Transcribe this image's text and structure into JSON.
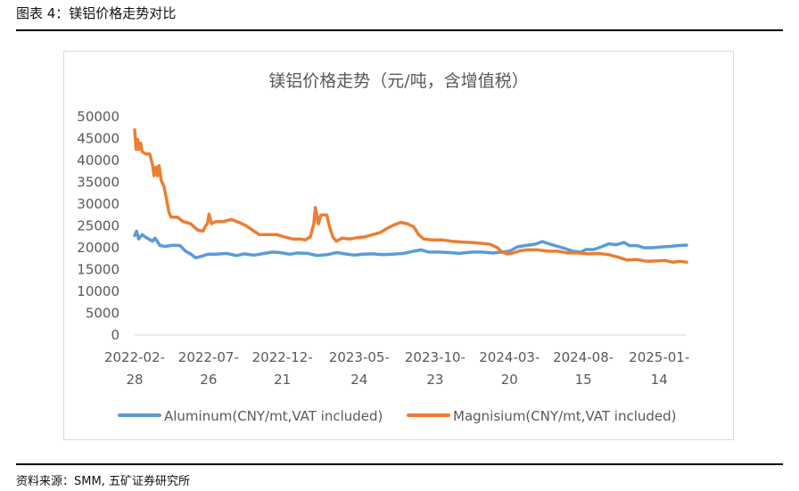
{
  "caption": "图表 4：镁铝价格走势对比",
  "source": "资料来源：SMM,  五矿证券研究所",
  "chart_data": {
    "type": "line",
    "title": "镁铝价格走势（元/吨，含增值税）",
    "xlabel": "",
    "ylabel": "",
    "ylim": [
      0,
      50000
    ],
    "yticks": [
      0,
      5000,
      10000,
      15000,
      20000,
      25000,
      30000,
      35000,
      40000,
      45000,
      50000
    ],
    "xlim": [
      "2022-02-28",
      "2025-03-10"
    ],
    "xticks": [
      {
        "date": "2022-02-28",
        "line1": "2022-02-",
        "line2": "28"
      },
      {
        "date": "2022-07-26",
        "line1": "2022-07-",
        "line2": "26"
      },
      {
        "date": "2022-12-21",
        "line1": "2022-12-",
        "line2": "21"
      },
      {
        "date": "2023-05-24",
        "line1": "2023-05-",
        "line2": "24"
      },
      {
        "date": "2023-10-23",
        "line1": "2023-10-",
        "line2": "23"
      },
      {
        "date": "2024-03-20",
        "line1": "2024-03-",
        "line2": "20"
      },
      {
        "date": "2024-08-15",
        "line1": "2024-08-",
        "line2": "15"
      },
      {
        "date": "2025-01-14",
        "line1": "2025-01-",
        "line2": "14"
      }
    ],
    "grid": false,
    "legend_position": "bottom",
    "series": [
      {
        "name": "Aluminum(CNY/mt,VAT included)",
        "color": "#5b9bd5",
        "points": [
          [
            "2022-02-28",
            22800
          ],
          [
            "2022-03-04",
            23800
          ],
          [
            "2022-03-08",
            22000
          ],
          [
            "2022-03-15",
            23000
          ],
          [
            "2022-03-25",
            22200
          ],
          [
            "2022-04-05",
            21500
          ],
          [
            "2022-04-10",
            22200
          ],
          [
            "2022-04-20",
            20500
          ],
          [
            "2022-05-01",
            20300
          ],
          [
            "2022-05-15",
            20600
          ],
          [
            "2022-05-30",
            20500
          ],
          [
            "2022-06-10",
            19200
          ],
          [
            "2022-06-20",
            18600
          ],
          [
            "2022-06-30",
            17700
          ],
          [
            "2022-07-10",
            18000
          ],
          [
            "2022-07-25",
            18500
          ],
          [
            "2022-08-10",
            18500
          ],
          [
            "2022-09-01",
            18700
          ],
          [
            "2022-09-20",
            18200
          ],
          [
            "2022-10-05",
            18600
          ],
          [
            "2022-10-25",
            18300
          ],
          [
            "2022-11-15",
            18700
          ],
          [
            "2022-12-01",
            19000
          ],
          [
            "2022-12-15",
            18900
          ],
          [
            "2023-01-05",
            18500
          ],
          [
            "2023-01-20",
            18800
          ],
          [
            "2023-02-10",
            18700
          ],
          [
            "2023-03-01",
            18200
          ],
          [
            "2023-03-20",
            18400
          ],
          [
            "2023-04-10",
            18900
          ],
          [
            "2023-04-25",
            18600
          ],
          [
            "2023-05-15",
            18300
          ],
          [
            "2023-06-01",
            18500
          ],
          [
            "2023-06-20",
            18600
          ],
          [
            "2023-07-10",
            18400
          ],
          [
            "2023-07-30",
            18500
          ],
          [
            "2023-08-20",
            18700
          ],
          [
            "2023-09-10",
            19200
          ],
          [
            "2023-09-25",
            19500
          ],
          [
            "2023-10-10",
            19000
          ],
          [
            "2023-11-01",
            19000
          ],
          [
            "2023-11-20",
            18900
          ],
          [
            "2023-12-10",
            18700
          ],
          [
            "2024-01-05",
            19000
          ],
          [
            "2024-01-25",
            19000
          ],
          [
            "2024-02-15",
            18800
          ],
          [
            "2024-03-05",
            19000
          ],
          [
            "2024-03-20",
            19200
          ],
          [
            "2024-04-05",
            20200
          ],
          [
            "2024-04-20",
            20500
          ],
          [
            "2024-05-10",
            20800
          ],
          [
            "2024-05-25",
            21400
          ],
          [
            "2024-06-10",
            20800
          ],
          [
            "2024-06-25",
            20300
          ],
          [
            "2024-07-10",
            19800
          ],
          [
            "2024-07-25",
            19200
          ],
          [
            "2024-08-10",
            19000
          ],
          [
            "2024-08-20",
            19600
          ],
          [
            "2024-09-05",
            19600
          ],
          [
            "2024-09-20",
            20200
          ],
          [
            "2024-10-05",
            20900
          ],
          [
            "2024-10-20",
            20700
          ],
          [
            "2024-11-05",
            21200
          ],
          [
            "2024-11-15",
            20500
          ],
          [
            "2024-11-30",
            20500
          ],
          [
            "2024-12-15",
            20000
          ],
          [
            "2025-01-01",
            20000
          ],
          [
            "2025-01-20",
            20200
          ],
          [
            "2025-02-05",
            20300
          ],
          [
            "2025-02-20",
            20500
          ],
          [
            "2025-03-10",
            20600
          ]
        ]
      },
      {
        "name": "Magnisium(CNY/mt,VAT included)",
        "color": "#ed7d31",
        "points": [
          [
            "2022-02-28",
            47000
          ],
          [
            "2022-03-01",
            45500
          ],
          [
            "2022-03-03",
            42500
          ],
          [
            "2022-03-06",
            44800
          ],
          [
            "2022-03-08",
            42500
          ],
          [
            "2022-03-12",
            44000
          ],
          [
            "2022-03-15",
            42000
          ],
          [
            "2022-03-22",
            41500
          ],
          [
            "2022-03-30",
            41500
          ],
          [
            "2022-04-05",
            39000
          ],
          [
            "2022-04-08",
            36500
          ],
          [
            "2022-04-12",
            38500
          ],
          [
            "2022-04-15",
            36500
          ],
          [
            "2022-04-18",
            38800
          ],
          [
            "2022-04-22",
            35500
          ],
          [
            "2022-04-28",
            34000
          ],
          [
            "2022-05-03",
            31000
          ],
          [
            "2022-05-08",
            28000
          ],
          [
            "2022-05-12",
            27000
          ],
          [
            "2022-05-25",
            27000
          ],
          [
            "2022-06-05",
            26000
          ],
          [
            "2022-06-20",
            25500
          ],
          [
            "2022-07-05",
            24000
          ],
          [
            "2022-07-15",
            23800
          ],
          [
            "2022-07-20",
            25000
          ],
          [
            "2022-07-24",
            25500
          ],
          [
            "2022-07-27",
            27700
          ],
          [
            "2022-08-01",
            25500
          ],
          [
            "2022-08-10",
            26000
          ],
          [
            "2022-08-25",
            26000
          ],
          [
            "2022-09-10",
            26500
          ],
          [
            "2022-09-25",
            25800
          ],
          [
            "2022-10-10",
            25000
          ],
          [
            "2022-10-25",
            23800
          ],
          [
            "2022-11-05",
            23000
          ],
          [
            "2022-11-20",
            23000
          ],
          [
            "2022-12-10",
            23000
          ],
          [
            "2022-12-25",
            22500
          ],
          [
            "2023-01-10",
            22000
          ],
          [
            "2023-01-25",
            22000
          ],
          [
            "2023-02-05",
            21800
          ],
          [
            "2023-02-15",
            22500
          ],
          [
            "2023-02-22",
            25500
          ],
          [
            "2023-02-25",
            29200
          ],
          [
            "2023-02-28",
            27500
          ],
          [
            "2023-03-03",
            25500
          ],
          [
            "2023-03-08",
            27500
          ],
          [
            "2023-03-20",
            27500
          ],
          [
            "2023-03-25",
            25000
          ],
          [
            "2023-04-01",
            22500
          ],
          [
            "2023-04-08",
            21500
          ],
          [
            "2023-04-20",
            22200
          ],
          [
            "2023-05-05",
            22000
          ],
          [
            "2023-05-20",
            22300
          ],
          [
            "2023-06-05",
            22500
          ],
          [
            "2023-06-20",
            23000
          ],
          [
            "2023-07-05",
            23500
          ],
          [
            "2023-07-20",
            24500
          ],
          [
            "2023-08-01",
            25200
          ],
          [
            "2023-08-15",
            25800
          ],
          [
            "2023-08-28",
            25500
          ],
          [
            "2023-09-10",
            24800
          ],
          [
            "2023-09-20",
            23000
          ],
          [
            "2023-09-30",
            22000
          ],
          [
            "2023-10-15",
            21800
          ],
          [
            "2023-11-05",
            21800
          ],
          [
            "2023-11-25",
            21500
          ],
          [
            "2023-12-15",
            21300
          ],
          [
            "2024-01-05",
            21200
          ],
          [
            "2024-01-25",
            21000
          ],
          [
            "2024-02-10",
            20800
          ],
          [
            "2024-02-25",
            20000
          ],
          [
            "2024-03-05",
            19000
          ],
          [
            "2024-03-15",
            18600
          ],
          [
            "2024-03-25",
            18700
          ],
          [
            "2024-04-10",
            19300
          ],
          [
            "2024-04-25",
            19500
          ],
          [
            "2024-05-15",
            19500
          ],
          [
            "2024-06-05",
            19200
          ],
          [
            "2024-06-25",
            19200
          ],
          [
            "2024-07-15",
            18800
          ],
          [
            "2024-08-05",
            18800
          ],
          [
            "2024-08-25",
            18600
          ],
          [
            "2024-09-15",
            18700
          ],
          [
            "2024-10-05",
            18400
          ],
          [
            "2024-10-25",
            17800
          ],
          [
            "2024-11-10",
            17200
          ],
          [
            "2024-11-30",
            17300
          ],
          [
            "2024-12-20",
            16900
          ],
          [
            "2025-01-10",
            17000
          ],
          [
            "2025-01-25",
            17100
          ],
          [
            "2025-02-10",
            16700
          ],
          [
            "2025-02-25",
            16900
          ],
          [
            "2025-03-10",
            16700
          ]
        ]
      }
    ]
  }
}
